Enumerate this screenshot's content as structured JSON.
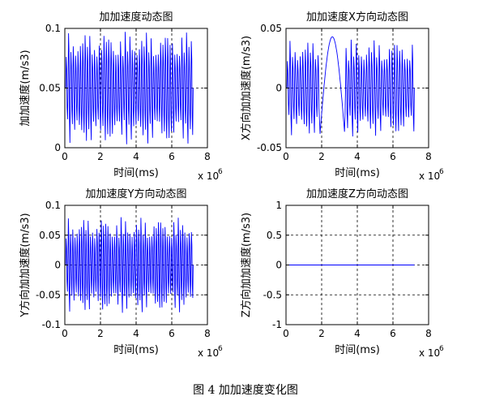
{
  "figure_caption": "图 4  加加速度变化图",
  "chart_data": [
    {
      "type": "line",
      "title": "加加速度动态图",
      "xlabel": "时间(ms)",
      "ylabel": "加加速度(m/s3)",
      "x_exponent": "x 10",
      "x_exponent_power": "6",
      "xlim": [
        0,
        8
      ],
      "ylim": [
        0,
        0.1
      ],
      "xticks": [
        "0",
        "2",
        "4",
        "6",
        "8"
      ],
      "yticks": [
        "0",
        "0.05",
        "0.1"
      ],
      "ytick_values": [
        0,
        0.05,
        0.1
      ],
      "grid": true,
      "color": "#0000ff",
      "signal": {
        "kind": "oscillation",
        "x_start": 0.05,
        "x_end": 7.2,
        "cycles": 54,
        "center": 0.05,
        "min": 0.0,
        "max": 0.1
      }
    },
    {
      "type": "line",
      "title": "加加速度X方向动态图",
      "xlabel": "时间(ms)",
      "ylabel": "X方向加加速度(m/s3)",
      "x_exponent": "x 10",
      "x_exponent_power": "6",
      "xlim": [
        0,
        8
      ],
      "ylim": [
        -0.05,
        0.05
      ],
      "xticks": [
        "0",
        "2",
        "4",
        "6",
        "8"
      ],
      "yticks": [
        "-0.05",
        "0",
        "0.05"
      ],
      "ytick_values": [
        -0.05,
        0,
        0.05
      ],
      "grid": true,
      "color": "#0000ff",
      "signal": {
        "kind": "oscillation-with-arch",
        "x_start": 0.05,
        "x_end": 7.2,
        "cycles": 50,
        "center": 0.0,
        "min": -0.043,
        "max": 0.043,
        "arch_start": 1.9,
        "arch_end": 3.3,
        "arch_peak": 0.043
      }
    },
    {
      "type": "line",
      "title": "加加速度Y方向动态图",
      "xlabel": "时间(ms)",
      "ylabel": "Y方向加加速度(m/s3)",
      "x_exponent": "x 10",
      "x_exponent_power": "6",
      "xlim": [
        0,
        8
      ],
      "ylim": [
        -0.1,
        0.1
      ],
      "xticks": [
        "0",
        "2",
        "4",
        "6",
        "8"
      ],
      "yticks": [
        "-0.1",
        "-0.05",
        "0",
        "0.05",
        "0.1"
      ],
      "ytick_values": [
        -0.1,
        -0.05,
        0,
        0.05,
        0.1
      ],
      "grid": true,
      "color": "#0000ff",
      "signal": {
        "kind": "oscillation",
        "x_start": 0.05,
        "x_end": 7.2,
        "cycles": 58,
        "center": 0.0,
        "min": -0.085,
        "max": 0.085
      }
    },
    {
      "type": "line",
      "title": "加加速度Z方向动态图",
      "xlabel": "时间(ms)",
      "ylabel": "Z方向加加速度(m/s3)",
      "x_exponent": "x 10",
      "x_exponent_power": "6",
      "xlim": [
        0,
        8
      ],
      "ylim": [
        -1,
        1
      ],
      "xticks": [
        "0",
        "2",
        "4",
        "6",
        "8"
      ],
      "yticks": [
        "-1",
        "-0.5",
        "0",
        "0.5",
        "1"
      ],
      "ytick_values": [
        -1,
        -0.5,
        0,
        0.5,
        1
      ],
      "grid": true,
      "color": "#0000ff",
      "signal": {
        "kind": "flat",
        "x_start": 0.0,
        "x_end": 7.2,
        "value": 0
      }
    }
  ]
}
